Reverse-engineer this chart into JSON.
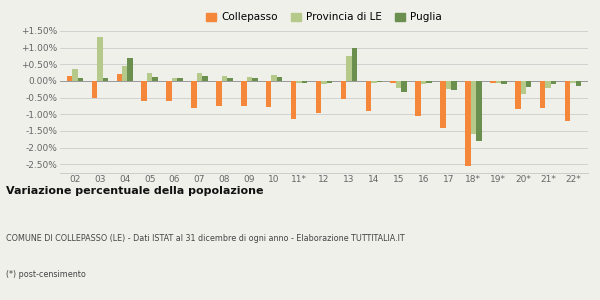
{
  "categories": [
    "02",
    "03",
    "04",
    "05",
    "06",
    "07",
    "08",
    "09",
    "10",
    "11*",
    "12",
    "13",
    "14",
    "15",
    "16",
    "17",
    "18*",
    "19*",
    "20*",
    "21*",
    "22*"
  ],
  "collepasso": [
    0.15,
    -0.5,
    0.2,
    -0.6,
    -0.6,
    -0.8,
    -0.75,
    -0.75,
    -0.78,
    -1.15,
    -0.97,
    -0.55,
    -0.9,
    -0.05,
    -1.05,
    -1.4,
    -2.55,
    -0.05,
    -0.85,
    -0.8,
    -1.2
  ],
  "provincia": [
    0.35,
    1.33,
    0.45,
    0.25,
    0.1,
    0.25,
    0.15,
    0.12,
    0.17,
    -0.05,
    -0.1,
    0.75,
    -0.05,
    -0.2,
    -0.1,
    -0.25,
    -1.6,
    -0.05,
    -0.4,
    -0.2,
    -0.07
  ],
  "puglia": [
    0.1,
    0.1,
    0.68,
    0.12,
    0.08,
    0.15,
    0.1,
    0.1,
    0.12,
    -0.05,
    -0.07,
    0.98,
    -0.03,
    -0.33,
    -0.07,
    -0.28,
    -1.8,
    -0.08,
    -0.18,
    -0.1,
    -0.15
  ],
  "collepasso_color": "#f4873a",
  "provincia_color": "#b5c98a",
  "puglia_color": "#6b8f4e",
  "title": "Variazione percentuale della popolazione",
  "subtitle": "COMUNE DI COLLEPASSO (LE) - Dati ISTAT al 31 dicembre di ogni anno - Elaborazione TUTTITALIA.IT",
  "footnote": "(*) post-censimento",
  "bg_color": "#f0f0eb",
  "ylim": [
    -2.75,
    1.75
  ],
  "yticks": [
    -2.5,
    -2.0,
    -1.5,
    -1.0,
    -0.5,
    0.0,
    0.5,
    1.0,
    1.5
  ],
  "ytick_labels": [
    "-2.50%",
    "-2.00%",
    "-1.50%",
    "-1.00%",
    "-0.50%",
    "0.00%",
    "+0.50%",
    "+1.00%",
    "+1.50%"
  ]
}
